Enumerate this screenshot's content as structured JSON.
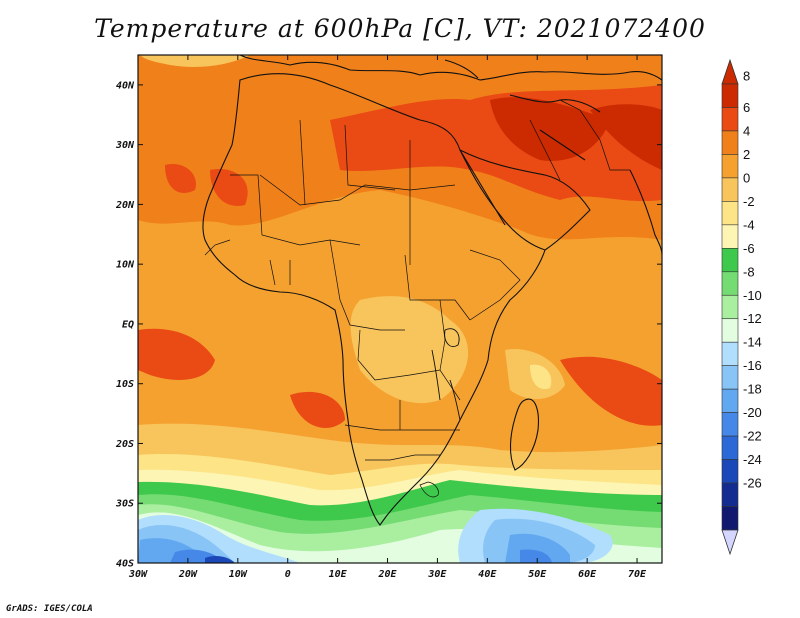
{
  "title": "Temperature at 600hPa [C], VT: 2021072400",
  "credit": "GrADS: IGES/COLA",
  "map": {
    "projection": "lat-lon",
    "region": "Africa",
    "lon_range": [
      -30,
      75
    ],
    "lat_range": [
      -40,
      45
    ],
    "lat_tick_labels": [
      "40N",
      "30N",
      "20N",
      "10N",
      "EQ",
      "10S",
      "20S",
      "30S",
      "40S"
    ],
    "lon_tick_labels": [
      "30W",
      "20W",
      "10W",
      "0",
      "10E",
      "20E",
      "30E",
      "40E",
      "50E",
      "60E",
      "70E"
    ]
  },
  "colorbar": {
    "labels": [
      "8",
      "6",
      "4",
      "2",
      "0",
      "-2",
      "-4",
      "-6",
      "-8",
      "-10",
      "-12",
      "-14",
      "-16",
      "-18",
      "-20",
      "-22",
      "-24",
      "-26"
    ],
    "colors": [
      "#cc2a00",
      "#ea4a14",
      "#f0801a",
      "#f5a130",
      "#f8c45c",
      "#fde486",
      "#fdf5b4",
      "#3ec94c",
      "#74dc72",
      "#aaeea0",
      "#e2fde0",
      "#b0defc",
      "#88c4f6",
      "#62a8f0",
      "#4688e8",
      "#2c68d6",
      "#1a48b8",
      "#142c90",
      "#101870"
    ],
    "max_arrow_color": "#cc2a00",
    "min_arrow_color": "#d4d6ff"
  }
}
